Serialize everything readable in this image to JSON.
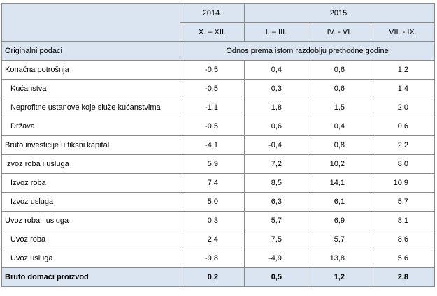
{
  "header": {
    "years": [
      "2014.",
      "2015."
    ],
    "periods": [
      "X. – XII.",
      "I. – III.",
      "IV. - VI.",
      "VII. - IX."
    ],
    "row_label": "Originalni podaci",
    "subtitle": "Odnos prema istom razdoblju prethodne godine"
  },
  "table": {
    "sections": [
      {
        "label": "Konačna potrošnja",
        "values": [
          "-0,5",
          "0,4",
          "0,6",
          "1,2"
        ],
        "items": [
          {
            "label": "Kućanstva",
            "values": [
              "-0,5",
              "0,3",
              "0,6",
              "1,4"
            ]
          },
          {
            "label": "Neprofitne ustanove koje služe kućanstvima",
            "values": [
              "-1,1",
              "1,8",
              "1,5",
              "2,0"
            ]
          },
          {
            "label": "Država",
            "values": [
              "-0,5",
              "0,6",
              "0,4",
              "0,6"
            ]
          }
        ]
      },
      {
        "label": "Bruto investicije u fiksni kapital",
        "values": [
          "-4,1",
          "-0,4",
          "0,8",
          "2,2"
        ],
        "items": []
      },
      {
        "label": "Izvoz roba i usluga",
        "values": [
          "5,9",
          "7,2",
          "10,2",
          "8,0"
        ],
        "items": [
          {
            "label": "Izvoz roba",
            "values": [
              "7,4",
              "8,5",
              "14,1",
              "10,9"
            ]
          },
          {
            "label": "Izvoz usluga",
            "values": [
              "5,0",
              "6,3",
              "6,1",
              "5,7"
            ]
          }
        ]
      },
      {
        "label": "Uvoz roba i usluga",
        "values": [
          "0,3",
          "5,7",
          "6,9",
          "8,1"
        ],
        "items": [
          {
            "label": "Uvoz roba",
            "values": [
              "2,4",
              "7,5",
              "5,7",
              "8,6"
            ]
          },
          {
            "label": "Uvoz usluga",
            "values": [
              "-9,8",
              "-4,9",
              "13,8",
              "5,6"
            ]
          }
        ]
      }
    ],
    "total": {
      "label": "Bruto domaći proizvod",
      "values": [
        "0,2",
        "0,5",
        "1,2",
        "2,8"
      ]
    }
  }
}
